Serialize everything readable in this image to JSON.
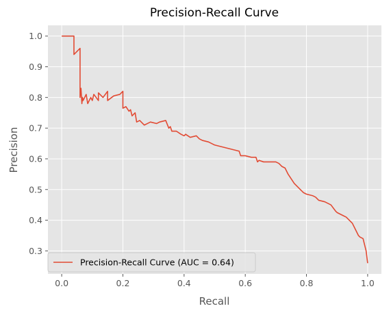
{
  "chart_data": {
    "type": "line",
    "title": "Precision-Recall Curve",
    "xlabel": "Recall",
    "ylabel": "Precision",
    "xlim": [
      -0.045,
      1.045
    ],
    "ylim": [
      0.225,
      1.035
    ],
    "xticks": [
      0.0,
      0.2,
      0.4,
      0.6,
      0.8,
      1.0
    ],
    "xtick_labels": [
      "0.0",
      "0.2",
      "0.4",
      "0.6",
      "0.8",
      "1.0"
    ],
    "yticks": [
      0.3,
      0.4,
      0.5,
      0.6,
      0.7,
      0.8,
      0.9,
      1.0
    ],
    "ytick_labels": [
      "0.3",
      "0.4",
      "0.5",
      "0.6",
      "0.7",
      "0.8",
      "0.9",
      "1.0"
    ],
    "grid": true,
    "legend_position": "lower-left",
    "series": [
      {
        "name": "Precision-Recall Curve (AUC = 0.64)",
        "color": "#E24A33",
        "x": [
          0.0,
          0.04,
          0.04,
          0.06,
          0.06,
          0.063,
          0.066,
          0.068,
          0.07,
          0.08,
          0.085,
          0.095,
          0.1,
          0.105,
          0.12,
          0.12,
          0.135,
          0.15,
          0.15,
          0.17,
          0.19,
          0.2,
          0.2,
          0.21,
          0.22,
          0.225,
          0.23,
          0.24,
          0.245,
          0.255,
          0.27,
          0.28,
          0.29,
          0.31,
          0.32,
          0.34,
          0.35,
          0.355,
          0.36,
          0.375,
          0.39,
          0.4,
          0.405,
          0.42,
          0.44,
          0.45,
          0.46,
          0.48,
          0.5,
          0.52,
          0.54,
          0.56,
          0.58,
          0.585,
          0.6,
          0.62,
          0.635,
          0.64,
          0.645,
          0.66,
          0.68,
          0.7,
          0.71,
          0.72,
          0.73,
          0.74,
          0.75,
          0.76,
          0.78,
          0.79,
          0.8,
          0.82,
          0.83,
          0.84,
          0.86,
          0.87,
          0.88,
          0.895,
          0.9,
          0.92,
          0.93,
          0.94,
          0.95,
          0.96,
          0.97,
          0.975,
          0.985,
          0.99,
          0.995,
          1.0
        ],
        "y": [
          1.0,
          1.0,
          0.94,
          0.96,
          0.8,
          0.83,
          0.78,
          0.8,
          0.79,
          0.81,
          0.78,
          0.8,
          0.79,
          0.81,
          0.79,
          0.815,
          0.8,
          0.82,
          0.79,
          0.805,
          0.81,
          0.82,
          0.765,
          0.77,
          0.755,
          0.76,
          0.74,
          0.75,
          0.72,
          0.725,
          0.71,
          0.715,
          0.72,
          0.715,
          0.72,
          0.725,
          0.7,
          0.705,
          0.69,
          0.69,
          0.68,
          0.675,
          0.68,
          0.67,
          0.675,
          0.665,
          0.66,
          0.655,
          0.645,
          0.64,
          0.635,
          0.63,
          0.625,
          0.61,
          0.61,
          0.605,
          0.605,
          0.59,
          0.595,
          0.59,
          0.59,
          0.59,
          0.585,
          0.575,
          0.57,
          0.55,
          0.535,
          0.52,
          0.5,
          0.49,
          0.485,
          0.48,
          0.475,
          0.465,
          0.46,
          0.455,
          0.45,
          0.43,
          0.425,
          0.415,
          0.41,
          0.4,
          0.39,
          0.37,
          0.35,
          0.345,
          0.34,
          0.32,
          0.3,
          0.26
        ]
      }
    ]
  }
}
